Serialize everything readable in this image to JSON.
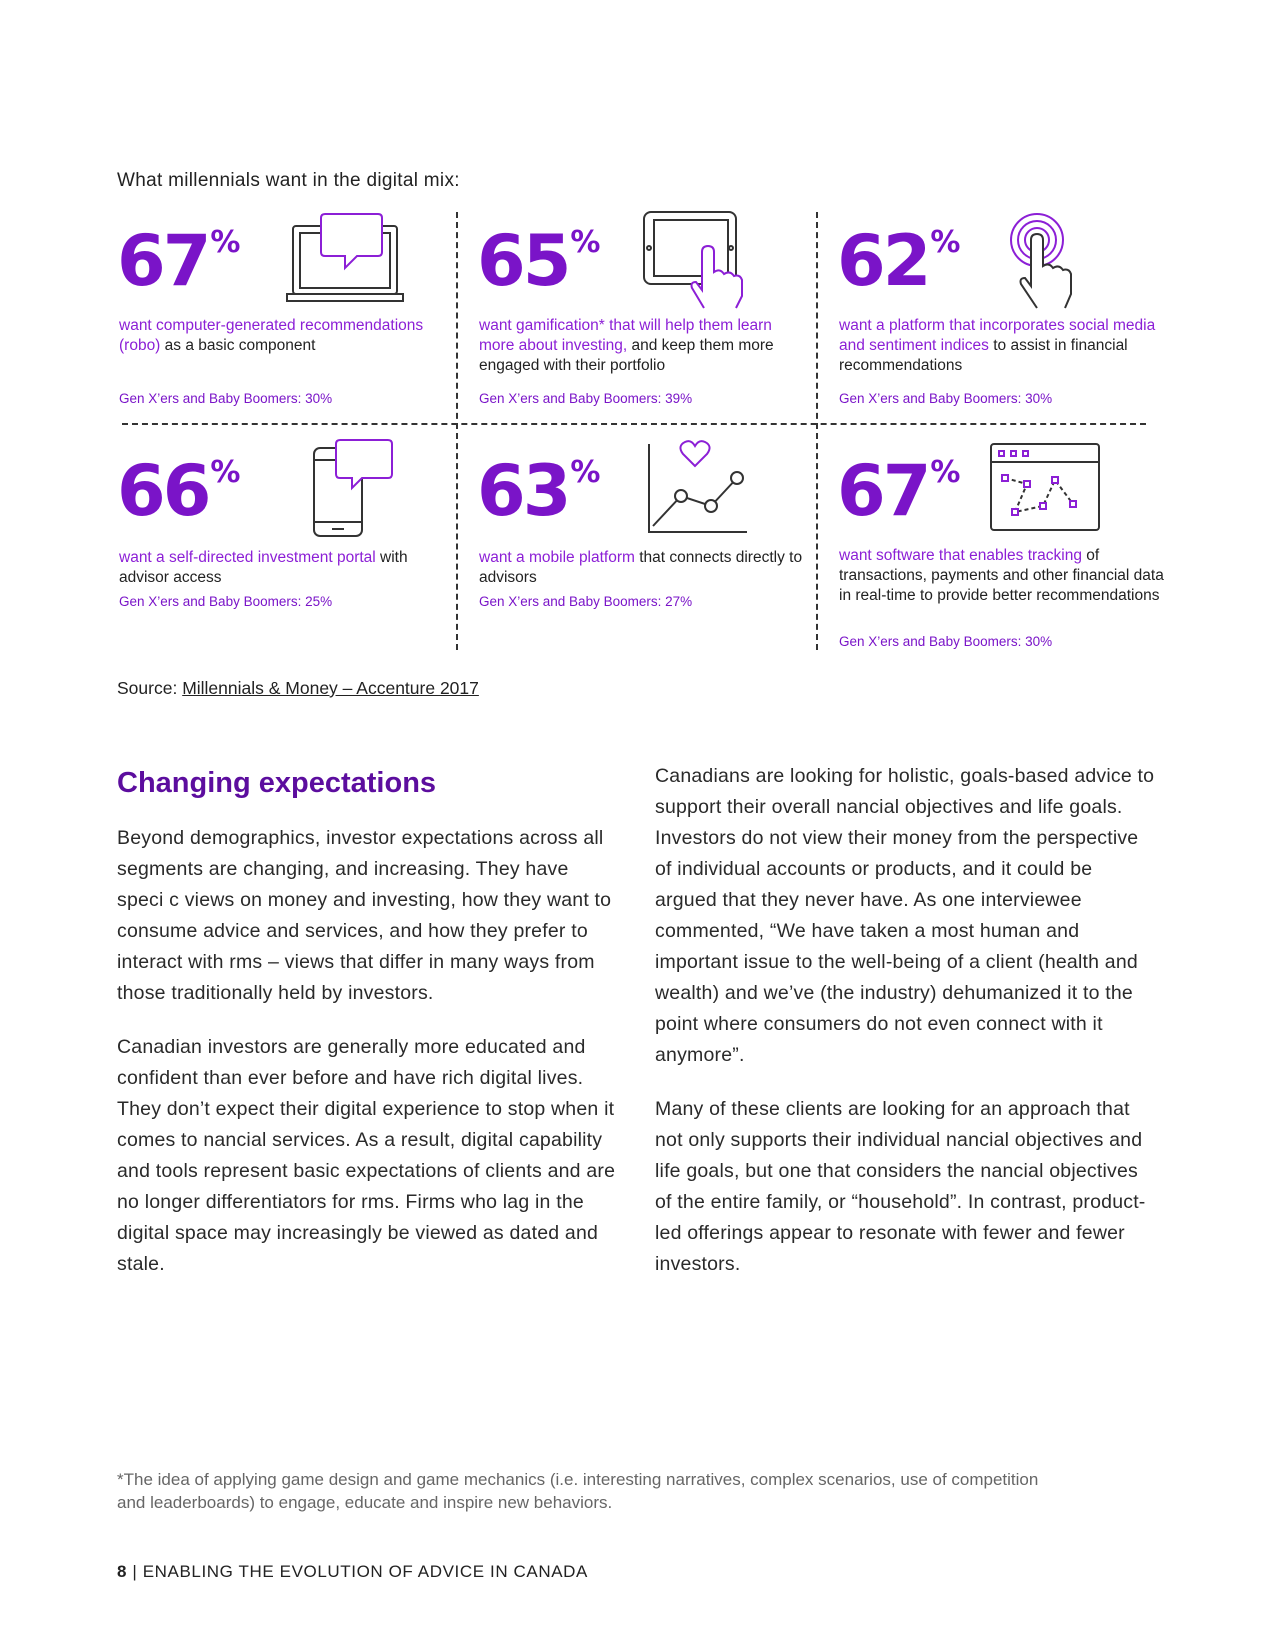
{
  "intro_text": "What millennials want in the digital mix:",
  "colors": {
    "purple": "#7a14c8",
    "dark_purple": "#5c0d9e",
    "highlight": "#8c1fd6"
  },
  "stats": [
    {
      "number": "67",
      "unit": "%",
      "icon": "laptop-chat-icon",
      "highlight": "want computer-generated recommendations (robo)",
      "rest": " as a basic component",
      "gen": "Gen X’ers and Baby Boomers: 30%"
    },
    {
      "number": "65",
      "unit": "%",
      "icon": "tablet-touch-icon",
      "highlight": "want gamification* that will help them learn more about investing,",
      "rest": " and keep them more engaged with their portfolio",
      "gen": "Gen X’ers and Baby Boomers: 39%"
    },
    {
      "number": "62",
      "unit": "%",
      "icon": "touch-hand-icon",
      "highlight": "want a platform that incorporates social media and sentiment indices",
      "rest": " to assist in financial recommendations",
      "gen": "Gen X’ers and Baby Boomers: 30%"
    },
    {
      "number": "66",
      "unit": "%",
      "icon": "mobile-chat-icon",
      "highlight": "want a self-directed investment portal",
      "rest": " with advisor access",
      "gen": "Gen X’ers and Baby Boomers: 25%"
    },
    {
      "number": "63",
      "unit": "%",
      "icon": "heart-line-chart-icon",
      "highlight": "want a mobile platform",
      "rest": " that connects directly to advisors",
      "gen": "Gen X’ers and Baby Boomers: 27%"
    },
    {
      "number": "67",
      "unit": "%",
      "icon": "browser-tracking-icon",
      "highlight": "want software that enables tracking",
      "rest": " of transactions, payments and other financial data in real-time to provide better recommendations",
      "gen": "Gen X’ers and Baby Boomers: 30%"
    }
  ],
  "source": {
    "label": "Source: ",
    "link": "Millennials & Money – Accenture 2017"
  },
  "heading": "Changing expectations",
  "left_paragraphs": [
    "Beyond demographics, investor expectations across all segments are changing, and increasing. They have speci c views on money and investing, how they want to consume advice and services, and how they prefer to interact with rms – views that differ in many ways from those traditionally held by investors.",
    "Canadian investors are generally more educated and confident than ever before and have rich digital lives. They don’t expect their digital experience to stop when it comes to nancial services. As a result, digital capability and tools represent basic expectations of clients and are no longer differentiators for rms. Firms who lag in the digital space may increasingly be viewed as dated and stale."
  ],
  "right_paragraphs": [
    "Canadians are looking for holistic, goals-based advice to support their overall nancial objectives and life goals. Investors do not view their money from the perspective of individual accounts or products, and it could be argued that they never have. As one interviewee commented, “We have taken a most human and important issue to the well-being of a client (health and wealth) and we’ve (the industry) dehumanized it to the point where consumers do not even connect with it anymore”.",
    "Many of these clients are looking for an approach that not only supports their individual nancial objectives and life goals, but one that considers the nancial objectives of the entire family, or “household”. In contrast, product-led offerings appear to resonate with fewer and fewer investors."
  ],
  "footnote": "*The idea of applying game design and game mechanics (i.e. interesting narratives, complex scenarios, use of competition and leaderboards) to engage, educate and inspire new behaviors.",
  "footer": {
    "page": "8",
    "separator": " | ",
    "title": "ENABLING THE EVOLUTION OF ADVICE IN CANADA"
  }
}
